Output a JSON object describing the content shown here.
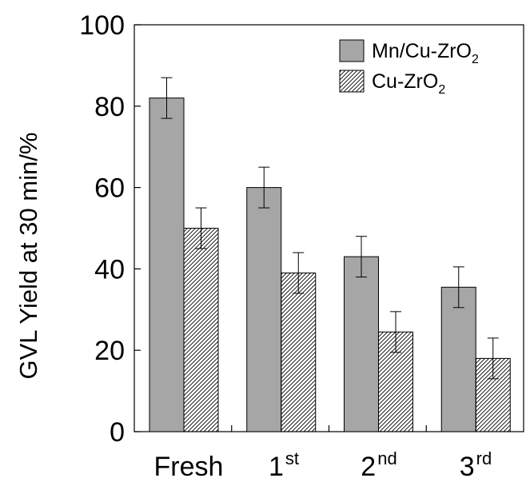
{
  "chart_data": {
    "type": "bar",
    "categories": [
      {
        "base": "Fresh",
        "sup": ""
      },
      {
        "base": "1",
        "sup": "st"
      },
      {
        "base": "2",
        "sup": "nd"
      },
      {
        "base": "3",
        "sup": "rd"
      }
    ],
    "series": [
      {
        "name": "Mn/Cu-ZrO",
        "name_sub": "2",
        "values": [
          82,
          60,
          43,
          35.5
        ],
        "errors": [
          5,
          5,
          5,
          5
        ],
        "fill": "#a6a6a6",
        "pattern": "solid"
      },
      {
        "name": "Cu-ZrO",
        "name_sub": "2",
        "values": [
          50,
          39,
          24.5,
          18
        ],
        "errors": [
          5,
          5,
          5,
          5
        ],
        "fill": "#ffffff",
        "pattern": "hatch"
      }
    ],
    "ylabel": "GVL Yield at 30 min/%",
    "xlabel": "",
    "ylim": [
      0,
      100
    ],
    "yticks": [
      0,
      20,
      40,
      60,
      80,
      100
    ],
    "legend_position": "top-right",
    "grid": false
  }
}
